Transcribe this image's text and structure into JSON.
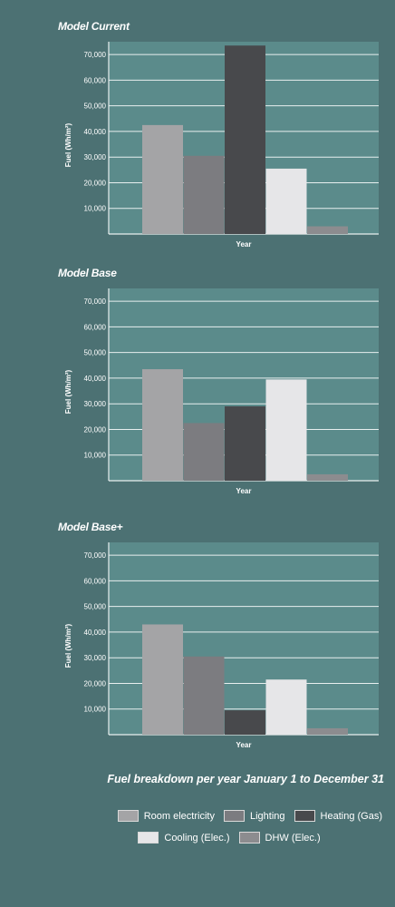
{
  "colors": {
    "room_electricity": "#a4a4a6",
    "lighting": "#7c7c80",
    "heating_gas": "#48494c",
    "cooling_elec": "#e6e6e8",
    "dhw_elec": "#8c8c8f",
    "plot_bg": "#5b8b8b",
    "page_bg": "#4c7173"
  },
  "caption": "Fuel breakdown per year January 1 to December 31",
  "legend": [
    {
      "label": "Room electricity",
      "key": "room_electricity"
    },
    {
      "label": "Lighting",
      "key": "lighting"
    },
    {
      "label": "Heating (Gas)",
      "key": "heating_gas"
    },
    {
      "label": "Cooling (Elec.)",
      "key": "cooling_elec"
    },
    {
      "label": "DHW (Elec.)",
      "key": "dhw_elec"
    }
  ],
  "chart_data": [
    {
      "type": "bar",
      "title": "Model Current",
      "xlabel": "Year",
      "ylabel": "Fuel (Wh/m²)",
      "categories": [
        "Room electricity",
        "Lighting",
        "Heating (Gas)",
        "Cooling (Elec.)",
        "DHW (Elec.)"
      ],
      "values": [
        42500,
        30500,
        73500,
        25500,
        3000
      ],
      "yticks": [
        "10,000",
        "20,000",
        "30,000",
        "40,000",
        "50,000",
        "60,000",
        "70,000"
      ],
      "ylim": [
        0,
        75000
      ],
      "grid": true
    },
    {
      "type": "bar",
      "title": "Model Base",
      "xlabel": "Year",
      "ylabel": "Fuel (Wh/m²)",
      "categories": [
        "Room electricity",
        "Lighting",
        "Heating (Gas)",
        "Cooling (Elec.)",
        "DHW (Elec.)"
      ],
      "values": [
        43500,
        22500,
        29000,
        39500,
        2500
      ],
      "yticks": [
        "10,000",
        "20,000",
        "30,000",
        "40,000",
        "50,000",
        "60,000",
        "70,000"
      ],
      "ylim": [
        0,
        75000
      ],
      "grid": true
    },
    {
      "type": "bar",
      "title": "Model Base+",
      "xlabel": "Year",
      "ylabel": "Fuel (Wh/m²)",
      "categories": [
        "Room electricity",
        "Lighting",
        "Heating (Gas)",
        "Cooling (Elec.)",
        "DHW (Elec.)"
      ],
      "values": [
        43000,
        30500,
        9500,
        21500,
        2500
      ],
      "yticks": [
        "10,000",
        "20,000",
        "30,000",
        "40,000",
        "50,000",
        "60,000",
        "70,000"
      ],
      "ylim": [
        0,
        75000
      ],
      "grid": true
    }
  ]
}
